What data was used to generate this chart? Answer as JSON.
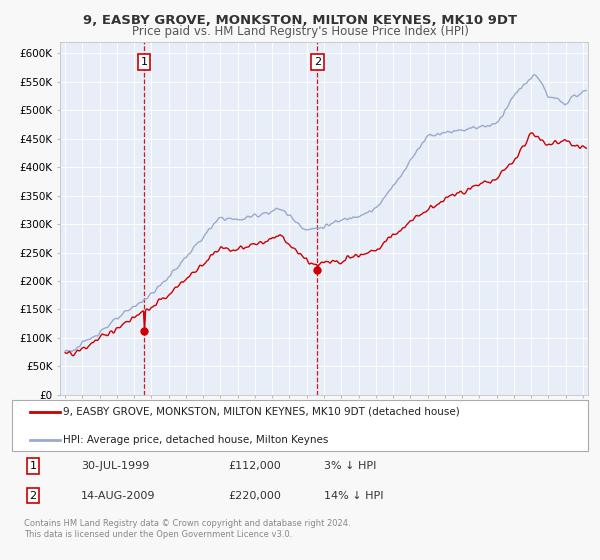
{
  "title": "9, EASBY GROVE, MONKSTON, MILTON KEYNES, MK10 9DT",
  "subtitle": "Price paid vs. HM Land Registry's House Price Index (HPI)",
  "property_label": "9, EASBY GROVE, MONKSTON, MILTON KEYNES, MK10 9DT (detached house)",
  "hpi_label": "HPI: Average price, detached house, Milton Keynes",
  "footnote": "Contains HM Land Registry data © Crown copyright and database right 2024.\nThis data is licensed under the Open Government Licence v3.0.",
  "sale1_date": 1999.58,
  "sale1_price": 112000,
  "sale2_date": 2009.62,
  "sale2_price": 220000,
  "property_color": "#cc0000",
  "hpi_color": "#99aacc",
  "fig_bg": "#f5f5f5",
  "plot_bg": "#e8eef8",
  "grid_color": "#ffffff",
  "ylim": [
    0,
    620000
  ],
  "xlim_start": 1994.7,
  "xlim_end": 2025.3,
  "yticks": [
    0,
    50000,
    100000,
    150000,
    200000,
    250000,
    300000,
    350000,
    400000,
    450000,
    500000,
    550000,
    600000
  ],
  "ytick_labels": [
    "£0",
    "£50K",
    "£100K",
    "£150K",
    "£200K",
    "£250K",
    "£300K",
    "£350K",
    "£400K",
    "£450K",
    "£500K",
    "£550K",
    "£600K"
  ]
}
